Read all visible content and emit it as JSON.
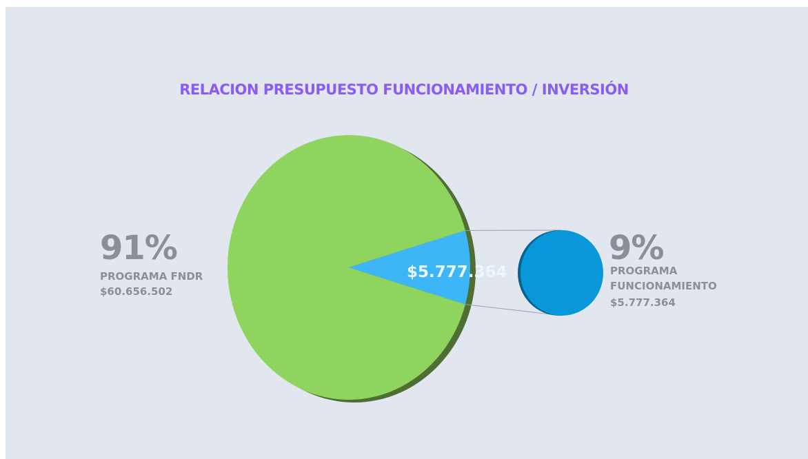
{
  "chart_data": {
    "type": "pie",
    "title": "RELACION PRESUPUESTO FUNCIONAMIENTO / INVERSIÓN",
    "categories": [
      "PROGRAMA FNDR",
      "PROGRAMA FUNCIONAMIENTO"
    ],
    "values": [
      91,
      9
    ],
    "value_labels": [
      "91%",
      "9%"
    ],
    "amounts": [
      60656502,
      5777364
    ],
    "amount_labels": [
      "$60.656.502",
      "$5.777.364"
    ],
    "colors": [
      "#8fd45f",
      "#3cb6f6"
    ]
  }
}
